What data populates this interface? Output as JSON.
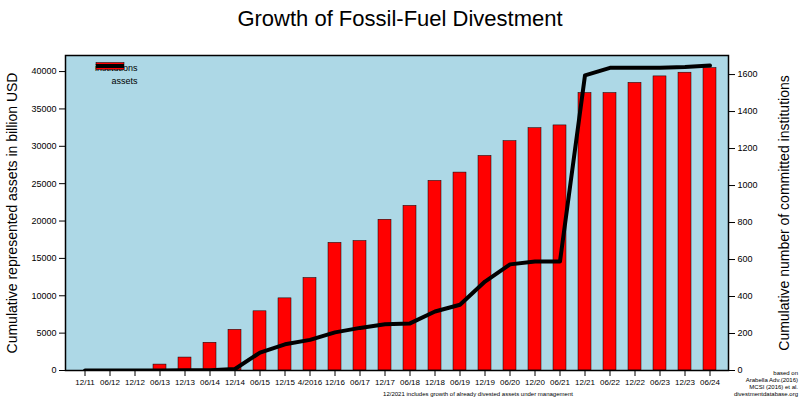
{
  "chart_data": {
    "type": "bar",
    "title": "Growth of Fossil-Fuel Divestment",
    "ylabel": "Cumulative represented assets in billion USD",
    "y2label": "Cumulative number of committed institutions",
    "categories": [
      "12/11",
      "06/12",
      "12/12",
      "06/13",
      "12/13",
      "06/14",
      "12/14",
      "06/15",
      "12/15",
      "4/2016",
      "12/16",
      "06/17",
      "12/17",
      "06/18",
      "12/18",
      "06/19",
      "12/19",
      "06/20",
      "12/20",
      "06/21",
      "12/21",
      "06/22",
      "12/22",
      "06/23",
      "12/23",
      "06/24"
    ],
    "series": [
      {
        "name": "institutions",
        "type": "bar",
        "color": "#ff0000",
        "axis": "y2",
        "values": [
          0,
          0,
          0,
          32,
          70,
          150,
          220,
          320,
          390,
          500,
          690,
          700,
          815,
          890,
          1025,
          1070,
          1160,
          1240,
          1310,
          1325,
          1500,
          1500,
          1555,
          1590,
          1610,
          1635
        ]
      },
      {
        "name": "assets",
        "type": "line",
        "color": "#000000",
        "values": [
          0,
          0,
          0,
          0,
          50,
          50,
          200,
          2400,
          3500,
          4100,
          5100,
          5700,
          6200,
          6300,
          7900,
          8800,
          11900,
          14200,
          14600,
          14600,
          39500,
          40500,
          40500,
          40500,
          40600,
          40800
        ]
      }
    ],
    "ylim": [
      0,
      42150
    ],
    "yticks": [
      0,
      5000,
      10000,
      15000,
      20000,
      25000,
      30000,
      35000,
      40000
    ],
    "y2lim": [
      0,
      1703
    ],
    "y2ticks": [
      0,
      200,
      400,
      600,
      800,
      1000,
      1200,
      1400,
      1600
    ],
    "legend": "top-left",
    "grid": false,
    "note": "12/2021 includes growth of already divested assets under management",
    "source": [
      "based on",
      "Arabella Adv.(2016)",
      "MCSI (2016) et al.",
      "divestmentdatabase.org"
    ]
  }
}
